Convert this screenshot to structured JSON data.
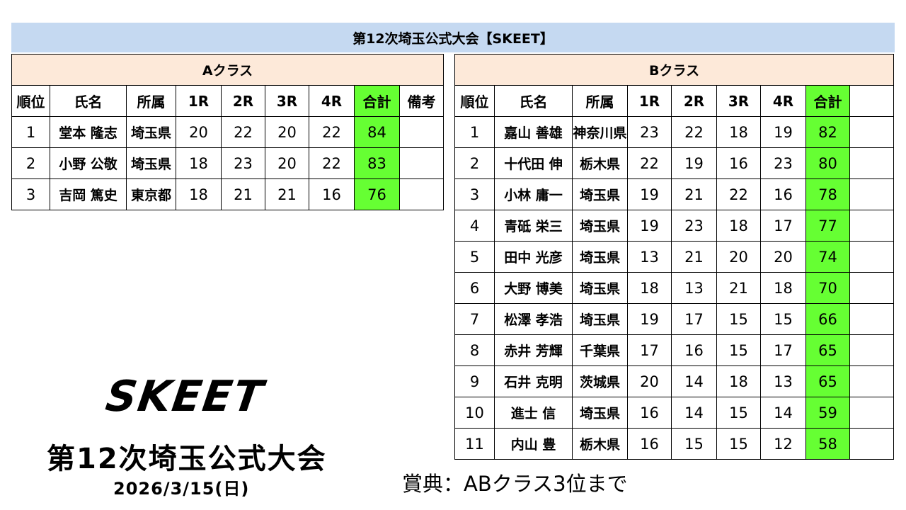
{
  "title": "第12次埼玉公式大会【SKEET】",
  "colors": {
    "title_bg": "#c5d9f1",
    "class_bg": "#fde9d9",
    "total_bg": "#66ff33"
  },
  "class_a": {
    "label": "Aクラス",
    "headers": [
      "順位",
      "氏名",
      "所属",
      "1R",
      "2R",
      "3R",
      "4R",
      "合計",
      "備考"
    ],
    "rows": [
      [
        "1",
        "堂本 隆志",
        "埼玉県",
        "20",
        "22",
        "20",
        "22",
        "84",
        ""
      ],
      [
        "2",
        "小野 公敬",
        "埼玉県",
        "18",
        "23",
        "20",
        "22",
        "83",
        ""
      ],
      [
        "3",
        "吉岡 篤史",
        "東京都",
        "18",
        "21",
        "21",
        "16",
        "76",
        ""
      ]
    ]
  },
  "class_b": {
    "label": "Bクラス",
    "headers": [
      "順位",
      "氏名",
      "所属",
      "1R",
      "2R",
      "3R",
      "4R",
      "合計",
      ""
    ],
    "rows": [
      [
        "1",
        "嘉山 善雄",
        "神奈川県",
        "23",
        "22",
        "18",
        "19",
        "82",
        ""
      ],
      [
        "2",
        "十代田 伸",
        "栃木県",
        "22",
        "19",
        "16",
        "23",
        "80",
        ""
      ],
      [
        "3",
        "小林 庸一",
        "埼玉県",
        "19",
        "21",
        "22",
        "16",
        "78",
        ""
      ],
      [
        "4",
        "青砥 栄三",
        "埼玉県",
        "19",
        "23",
        "18",
        "17",
        "77",
        ""
      ],
      [
        "5",
        "田中 光彦",
        "埼玉県",
        "13",
        "21",
        "20",
        "20",
        "74",
        ""
      ],
      [
        "6",
        "大野 博美",
        "埼玉県",
        "18",
        "13",
        "21",
        "18",
        "70",
        ""
      ],
      [
        "7",
        "松澤 孝浩",
        "埼玉県",
        "19",
        "17",
        "15",
        "15",
        "66",
        ""
      ],
      [
        "8",
        "赤井 芳輝",
        "千葉県",
        "17",
        "16",
        "15",
        "17",
        "65",
        ""
      ],
      [
        "9",
        "石井 克明",
        "茨城県",
        "20",
        "14",
        "18",
        "13",
        "65",
        ""
      ],
      [
        "10",
        "進士 信",
        "埼玉県",
        "16",
        "14",
        "15",
        "14",
        "59",
        ""
      ],
      [
        "11",
        "内山 豊",
        "栃木県",
        "16",
        "15",
        "15",
        "12",
        "58",
        ""
      ]
    ]
  },
  "footer": {
    "logo_text": "SKEET",
    "event_name": "第12次埼玉公式大会",
    "date": "2026/3/15(日)",
    "prize": "賞典：ABクラス3位まで"
  }
}
